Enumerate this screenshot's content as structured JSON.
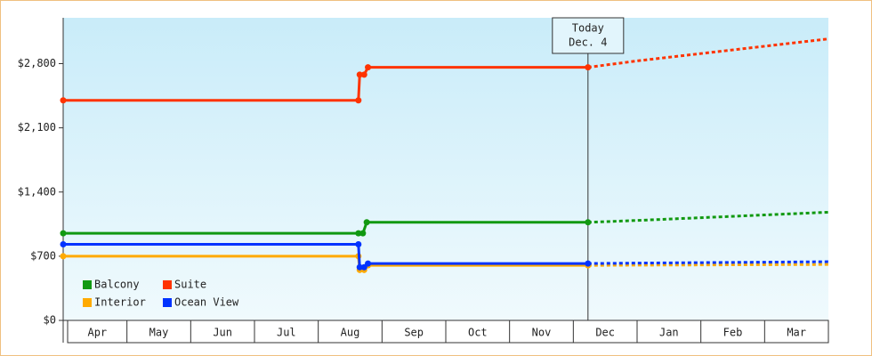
{
  "chart_data": {
    "type": "line",
    "xlim": [
      0,
      12
    ],
    "xticks": [
      {
        "value": 0,
        "label": "Apr"
      },
      {
        "value": 1,
        "label": "May"
      },
      {
        "value": 2,
        "label": "Jun"
      },
      {
        "value": 3,
        "label": "Jul"
      },
      {
        "value": 4,
        "label": "Aug"
      },
      {
        "value": 5,
        "label": "Sep"
      },
      {
        "value": 6,
        "label": "Oct"
      },
      {
        "value": 7,
        "label": "Nov"
      },
      {
        "value": 8,
        "label": "Dec"
      },
      {
        "value": 9,
        "label": "Jan"
      },
      {
        "value": 10,
        "label": "Feb"
      },
      {
        "value": 11,
        "label": "Mar"
      }
    ],
    "ylim": [
      0,
      3300
    ],
    "yticks": [
      {
        "value": 0,
        "label": "$0"
      },
      {
        "value": 700,
        "label": "$700"
      },
      {
        "value": 1400,
        "label": "$1,400"
      },
      {
        "value": 2100,
        "label": "$2,100"
      },
      {
        "value": 2800,
        "label": "$2,800"
      }
    ],
    "today": {
      "x": 8.23,
      "label": [
        "Today",
        "Dec. 4"
      ]
    },
    "series": [
      {
        "name": "Balcony",
        "color": "#119911",
        "x": [
          0,
          4.63,
          4.7,
          4.76,
          8.23
        ],
        "values": [
          950,
          950,
          950,
          1070,
          1070
        ],
        "forecast": {
          "x": [
            8.23,
            9,
            10,
            11,
            12
          ],
          "values": [
            1070,
            1090,
            1120,
            1150,
            1180
          ]
        }
      },
      {
        "name": "Suite",
        "color": "#ff3300",
        "x": [
          0,
          4.63,
          4.65,
          4.72,
          4.78,
          8.23
        ],
        "values": [
          2400,
          2400,
          2680,
          2680,
          2760,
          2760
        ],
        "forecast": {
          "x": [
            8.23,
            9,
            10,
            11,
            12
          ],
          "values": [
            2760,
            2830,
            2910,
            2990,
            3070
          ]
        }
      },
      {
        "name": "Interior",
        "color": "#ffaa00",
        "x": [
          0,
          4.63,
          4.65,
          4.72,
          4.78,
          8.23
        ],
        "values": [
          700,
          700,
          550,
          550,
          600,
          600
        ],
        "forecast": {
          "x": [
            8.23,
            9,
            10,
            11,
            12
          ],
          "values": [
            600,
            603,
            605,
            608,
            610
          ]
        }
      },
      {
        "name": "Ocean View",
        "color": "#0033ff",
        "x": [
          0,
          4.63,
          4.65,
          4.72,
          4.78,
          8.23
        ],
        "values": [
          830,
          830,
          580,
          580,
          620,
          620
        ],
        "forecast": {
          "x": [
            8.23,
            9,
            10,
            11,
            12
          ],
          "values": [
            620,
            625,
            630,
            635,
            640
          ]
        }
      }
    ]
  }
}
